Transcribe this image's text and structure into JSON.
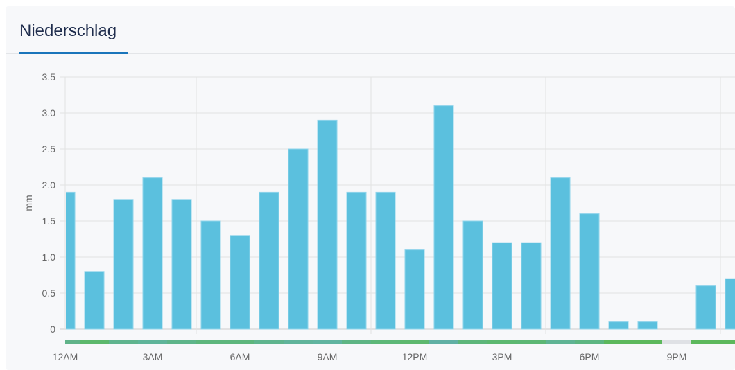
{
  "tabs": [
    {
      "label": "Niederschlag",
      "active": true
    }
  ],
  "chart_data": {
    "type": "bar",
    "title": "",
    "xlabel": "",
    "ylabel": "mm",
    "ylim": [
      0,
      3.5
    ],
    "yticks": [
      "0",
      "0.5",
      "1.0",
      "1.5",
      "2.0",
      "2.5",
      "3.0",
      "3.5"
    ],
    "xticks": [
      {
        "label": "12AM",
        "hour": 0
      },
      {
        "label": "3AM",
        "hour": 3
      },
      {
        "label": "6AM",
        "hour": 6
      },
      {
        "label": "9AM",
        "hour": 9
      },
      {
        "label": "12PM",
        "hour": 12
      },
      {
        "label": "3PM",
        "hour": 15
      },
      {
        "label": "6PM",
        "hour": 18
      },
      {
        "label": "9PM",
        "hour": 21
      }
    ],
    "hours": [
      0,
      1,
      2,
      3,
      4,
      5,
      6,
      7,
      8,
      9,
      10,
      11,
      12,
      13,
      14,
      15,
      16,
      17,
      18,
      19,
      20,
      21,
      22,
      23
    ],
    "values": [
      1.9,
      0.8,
      1.8,
      2.1,
      1.8,
      1.5,
      1.3,
      1.9,
      2.5,
      2.9,
      1.9,
      1.9,
      1.1,
      3.1,
      1.5,
      1.2,
      1.2,
      2.1,
      1.6,
      0.1,
      0.1,
      0,
      0.6,
      0.7
    ],
    "grid": true,
    "bar_color": "#5bc0de",
    "strip_colors": [
      "#60b389",
      "#5cb86c",
      "#5fb48e",
      "#5fb59a",
      "#5eb58a",
      "#5db67c",
      "#5db67c",
      "#5fb58e",
      "#60b49b",
      "#60b4a0",
      "#5eb584",
      "#5db878",
      "#5db86e",
      "#60b0a4",
      "#5db67a",
      "#5cb870",
      "#5cb774",
      "#5fb494",
      "#5db682",
      "#5cb85c",
      "#5cb85c",
      "#dfe1e5",
      "#5cb85c",
      "#5cb85c"
    ]
  }
}
